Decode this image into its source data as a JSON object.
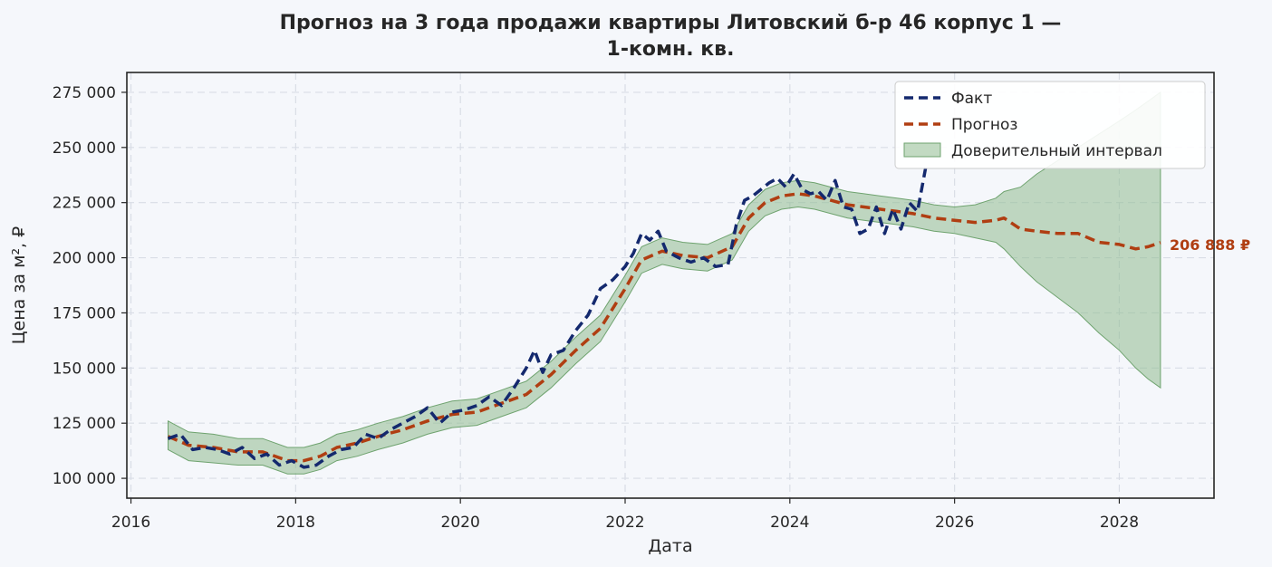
{
  "chart_data": {
    "type": "line",
    "title_line1": "Прогноз на 3 года продажи квартиры  Литовский б-р 46 корпус 1 —",
    "title_line2": "1-комн. кв.",
    "xlabel": "Дата",
    "ylabel": "Цена за м², ₽",
    "xlim": [
      2015.95,
      2029.15
    ],
    "ylim": [
      91000,
      284000
    ],
    "x_ticks": [
      2016,
      2018,
      2020,
      2022,
      2024,
      2026,
      2028
    ],
    "x_tick_labels": [
      "2016",
      "2018",
      "2020",
      "2022",
      "2024",
      "2026",
      "2028"
    ],
    "y_ticks": [
      100000,
      125000,
      150000,
      175000,
      200000,
      225000,
      250000,
      275000
    ],
    "y_tick_labels": [
      "100 000",
      "125 000",
      "150 000",
      "175 000",
      "200 000",
      "225 000",
      "250 000",
      "275 000"
    ],
    "grid": true,
    "legend_position": "top-right",
    "legend": [
      "Факт",
      "Прогноз",
      "Доверительный интервал"
    ],
    "end_label": "206 888 ₽",
    "colors": {
      "fact": "#14296e",
      "forecast": "#b03e12",
      "interval_fill": "#8fbc8f",
      "interval_stroke": "#6fa36f",
      "background": "#f5f7fb",
      "grid": "#d9dde6"
    },
    "series": [
      {
        "name": "Факт",
        "x": [
          2016.45,
          2016.6,
          2016.75,
          2016.9,
          2017.05,
          2017.2,
          2017.35,
          2017.5,
          2017.65,
          2017.8,
          2017.95,
          2018.1,
          2018.25,
          2018.4,
          2018.55,
          2018.7,
          2018.85,
          2019.0,
          2019.15,
          2019.3,
          2019.45,
          2019.6,
          2019.75,
          2019.9,
          2020.05,
          2020.2,
          2020.35,
          2020.5,
          2020.65,
          2020.8,
          2020.9,
          2021.0,
          2021.1,
          2021.25,
          2021.4,
          2021.55,
          2021.7,
          2021.85,
          2022.0,
          2022.1,
          2022.2,
          2022.3,
          2022.4,
          2022.5,
          2022.65,
          2022.8,
          2022.95,
          2023.1,
          2023.25,
          2023.35,
          2023.45,
          2023.55,
          2023.65,
          2023.75,
          2023.85,
          2023.95,
          2024.05,
          2024.15,
          2024.25,
          2024.35,
          2024.45,
          2024.55,
          2024.65,
          2024.75,
          2024.85,
          2024.95,
          2025.05,
          2025.15,
          2025.25,
          2025.35,
          2025.45,
          2025.55,
          2025.65
        ],
        "values": [
          118000,
          120000,
          113000,
          114000,
          113000,
          111000,
          114000,
          109000,
          111000,
          106000,
          108000,
          105000,
          106000,
          110000,
          113000,
          114000,
          120000,
          118000,
          122000,
          125000,
          128000,
          132000,
          125000,
          130000,
          131000,
          133000,
          137000,
          133000,
          141000,
          150000,
          158000,
          148000,
          156000,
          158000,
          167000,
          174000,
          186000,
          190000,
          196000,
          202000,
          211000,
          208000,
          212000,
          203000,
          200000,
          198000,
          200000,
          196000,
          197000,
          215000,
          226000,
          228000,
          231000,
          234000,
          236000,
          232000,
          238000,
          231000,
          229000,
          230000,
          226000,
          235000,
          223000,
          222000,
          211000,
          213000,
          223000,
          211000,
          222000,
          213000,
          225000,
          221000,
          241000
        ]
      },
      {
        "name": "Прогноз",
        "x": [
          2016.45,
          2016.7,
          2017.0,
          2017.3,
          2017.6,
          2017.9,
          2018.1,
          2018.3,
          2018.5,
          2018.75,
          2019.0,
          2019.3,
          2019.6,
          2019.9,
          2020.2,
          2020.5,
          2020.8,
          2021.1,
          2021.4,
          2021.7,
          2022.0,
          2022.2,
          2022.45,
          2022.7,
          2023.0,
          2023.3,
          2023.5,
          2023.7,
          2023.9,
          2024.1,
          2024.3,
          2024.5,
          2024.7,
          2024.9,
          2025.1,
          2025.3,
          2025.5,
          2025.75,
          2026.0,
          2026.25,
          2026.5,
          2026.6,
          2026.8,
          2027.0,
          2027.25,
          2027.5,
          2027.75,
          2028.0,
          2028.2,
          2028.35,
          2028.5
        ],
        "values": [
          119000,
          115000,
          114000,
          112000,
          112000,
          108000,
          108000,
          110000,
          114000,
          116000,
          119000,
          122000,
          126000,
          129000,
          130000,
          134000,
          138000,
          147000,
          158000,
          168000,
          186000,
          199000,
          203000,
          201000,
          200000,
          205000,
          218000,
          225000,
          228000,
          229000,
          228000,
          226000,
          224000,
          223000,
          222000,
          221000,
          220000,
          218000,
          217000,
          216000,
          217000,
          218000,
          213000,
          212000,
          211000,
          211000,
          207000,
          206000,
          204000,
          205000,
          206888
        ]
      }
    ],
    "interval": {
      "x": [
        2016.45,
        2016.7,
        2017.0,
        2017.3,
        2017.6,
        2017.9,
        2018.1,
        2018.3,
        2018.5,
        2018.75,
        2019.0,
        2019.3,
        2019.6,
        2019.9,
        2020.2,
        2020.5,
        2020.8,
        2021.1,
        2021.4,
        2021.7,
        2022.0,
        2022.2,
        2022.45,
        2022.7,
        2023.0,
        2023.3,
        2023.5,
        2023.7,
        2023.9,
        2024.1,
        2024.3,
        2024.5,
        2024.7,
        2024.9,
        2025.1,
        2025.3,
        2025.5,
        2025.75,
        2026.0,
        2026.25,
        2026.5,
        2026.6,
        2026.8,
        2027.0,
        2027.25,
        2027.5,
        2027.75,
        2028.0,
        2028.2,
        2028.35,
        2028.5
      ],
      "lower": [
        113000,
        108000,
        107000,
        106000,
        106000,
        102000,
        102000,
        104000,
        108000,
        110000,
        113000,
        116000,
        120000,
        123000,
        124000,
        128000,
        132000,
        141000,
        152000,
        162000,
        180000,
        193000,
        197000,
        195000,
        194000,
        199000,
        212000,
        219000,
        222000,
        223000,
        222000,
        220000,
        218000,
        217000,
        216000,
        215000,
        214000,
        212000,
        211000,
        209000,
        207000,
        204000,
        196000,
        189000,
        182000,
        175000,
        166000,
        158000,
        150000,
        145000,
        141000
      ],
      "upper": [
        126000,
        121000,
        120000,
        118000,
        118000,
        114000,
        114000,
        116000,
        120000,
        122000,
        125000,
        128000,
        132000,
        135000,
        136000,
        140000,
        144000,
        153000,
        164000,
        174000,
        192000,
        205000,
        209000,
        207000,
        206000,
        211000,
        224000,
        231000,
        234000,
        235000,
        234000,
        232000,
        230000,
        229000,
        228000,
        227000,
        226000,
        224000,
        223000,
        224000,
        227000,
        230000,
        232000,
        238000,
        244000,
        250000,
        256000,
        262000,
        267000,
        271000,
        275000
      ]
    }
  }
}
